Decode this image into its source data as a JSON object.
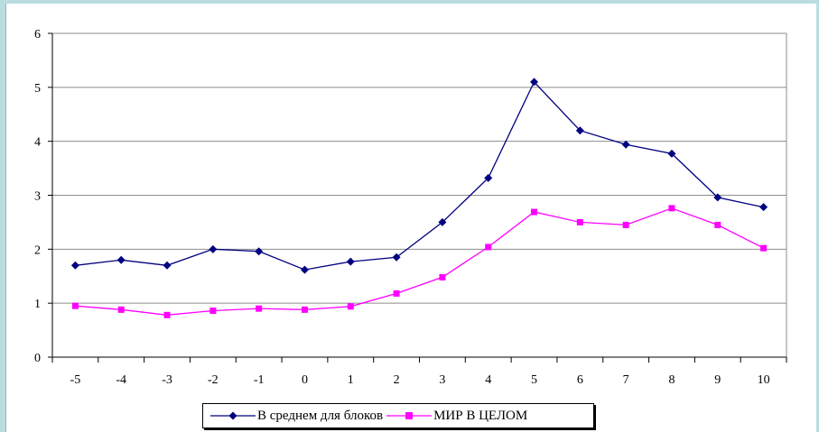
{
  "chart_data": {
    "type": "line",
    "title": "",
    "xlabel": "",
    "ylabel": "",
    "x": [
      "-5",
      "-4",
      "-3",
      "-2",
      "-1",
      "0",
      "1",
      "2",
      "3",
      "4",
      "5",
      "6",
      "7",
      "8",
      "9",
      "10"
    ],
    "ylim": [
      0,
      6
    ],
    "yticks": [
      "0",
      "1",
      "2",
      "3",
      "4",
      "5",
      "6"
    ],
    "grid": "horizontal",
    "legend_position": "bottom",
    "series": [
      {
        "name": "В среднем для блоков",
        "color": "#000080",
        "marker": "diamond",
        "values": [
          1.7,
          1.8,
          1.7,
          2.0,
          1.96,
          1.62,
          1.77,
          1.85,
          2.5,
          3.32,
          5.1,
          4.2,
          3.94,
          3.77,
          2.96,
          2.78
        ]
      },
      {
        "name": "МИР В ЦЕЛОМ",
        "color": "#ff00ff",
        "marker": "square",
        "values": [
          0.95,
          0.88,
          0.78,
          0.86,
          0.9,
          0.88,
          0.94,
          1.18,
          1.48,
          2.04,
          2.69,
          2.5,
          2.45,
          2.76,
          2.45,
          2.02
        ]
      }
    ]
  }
}
